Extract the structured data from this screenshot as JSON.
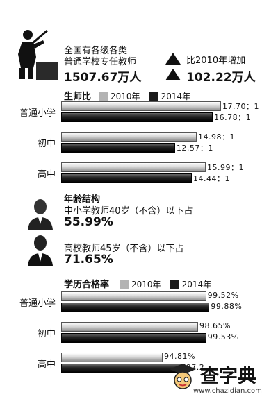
{
  "header": {
    "line1": "全国有各级各类",
    "line2": "普通学校专任教师",
    "total": "1507.67万人",
    "compare_label": "比2010年增加",
    "increase": "102.22万人"
  },
  "age": {
    "title": "年龄结构",
    "item1_text": "中小学教师40岁（不含）以下占",
    "item1_value": "55.99%",
    "item2_text": "高校教师45岁（不含）以下占",
    "item2_value": "71.65%"
  },
  "watermark": {
    "brand": "查字典",
    "url": "www.chazidian.com"
  },
  "colors": {
    "year2010": "#b3b3b3",
    "year2014": "#1a1a1a"
  },
  "chart_data": [
    {
      "type": "bar",
      "orientation": "horizontal",
      "title": "生师比",
      "categories": [
        "普通小学",
        "初中",
        "高中"
      ],
      "series": [
        {
          "name": "2010年",
          "values": [
            17.7,
            14.98,
            15.99
          ],
          "labels": [
            "17.70：1",
            "14.98：1",
            "15.99：1"
          ]
        },
        {
          "name": "2014年",
          "values": [
            16.78,
            12.57,
            14.44
          ],
          "labels": [
            "16.78：1",
            "12.57：1",
            "14.44：1"
          ]
        }
      ],
      "legend": "top"
    },
    {
      "type": "bar",
      "orientation": "horizontal",
      "title": "学历合格率",
      "categories": [
        "普通小学",
        "初中",
        "高中"
      ],
      "series": [
        {
          "name": "2010年",
          "values": [
            99.52,
            98.65,
            94.81
          ],
          "labels": [
            "99.52%",
            "98.65%",
            "94.81%"
          ]
        },
        {
          "name": "2014年",
          "values": [
            99.88,
            99.53,
            97.2
          ],
          "labels": [
            "99.88%",
            "99.53%",
            "97.2"
          ]
        }
      ],
      "legend": "top"
    }
  ]
}
